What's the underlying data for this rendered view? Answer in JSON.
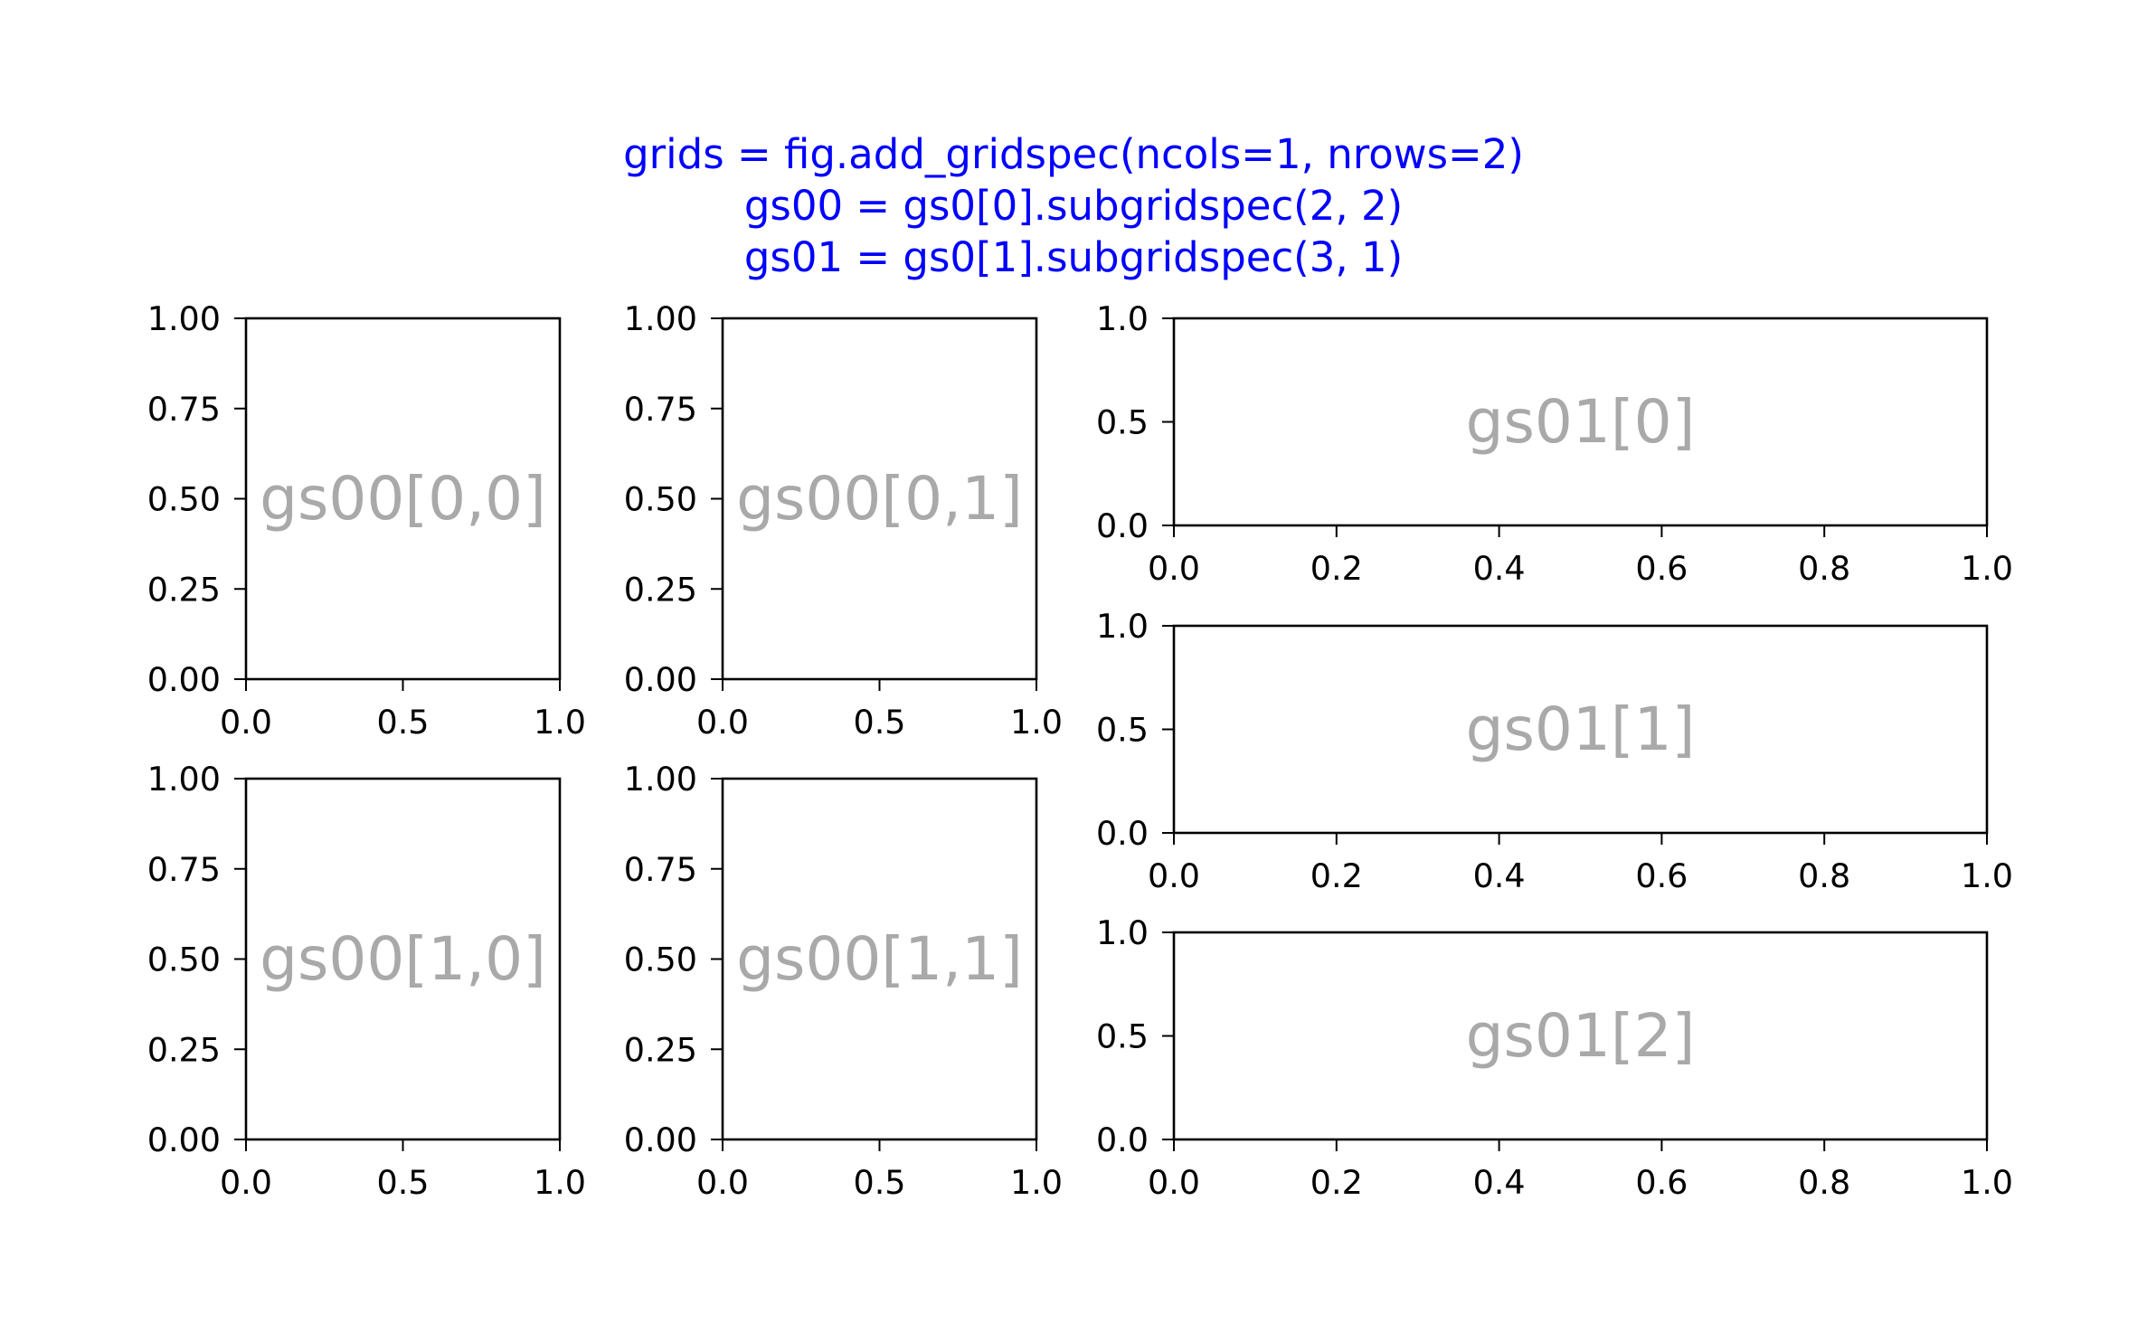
{
  "title_color": "#0000ff",
  "label_color": "#a9a9a9",
  "chart_data": {
    "type": "empty-axes-grid",
    "title_lines": [
      "grids = fig.add_gridspec(ncols=1, nrows=2)",
      "gs00 = gs0[0].subgridspec(2, 2)",
      "gs01 = gs0[1].subgridspec(3, 1)"
    ],
    "axes": [
      {
        "label": "gs00[0,0]",
        "xlim": [
          0,
          1
        ],
        "ylim": [
          0,
          1
        ],
        "xticks": [
          "0.0",
          "0.5",
          "1.0"
        ],
        "yticks": [
          "0.00",
          "0.25",
          "0.50",
          "0.75",
          "1.00"
        ]
      },
      {
        "label": "gs00[0,1]",
        "xlim": [
          0,
          1
        ],
        "ylim": [
          0,
          1
        ],
        "xticks": [
          "0.0",
          "0.5",
          "1.0"
        ],
        "yticks": [
          "0.00",
          "0.25",
          "0.50",
          "0.75",
          "1.00"
        ]
      },
      {
        "label": "gs00[1,0]",
        "xlim": [
          0,
          1
        ],
        "ylim": [
          0,
          1
        ],
        "xticks": [
          "0.0",
          "0.5",
          "1.0"
        ],
        "yticks": [
          "0.00",
          "0.25",
          "0.50",
          "0.75",
          "1.00"
        ]
      },
      {
        "label": "gs00[1,1]",
        "xlim": [
          0,
          1
        ],
        "ylim": [
          0,
          1
        ],
        "xticks": [
          "0.0",
          "0.5",
          "1.0"
        ],
        "yticks": [
          "0.00",
          "0.25",
          "0.50",
          "0.75",
          "1.00"
        ]
      },
      {
        "label": "gs01[0]",
        "xlim": [
          0,
          1
        ],
        "ylim": [
          0,
          1
        ],
        "xticks": [
          "0.0",
          "0.2",
          "0.4",
          "0.6",
          "0.8",
          "1.0"
        ],
        "yticks": [
          "0.0",
          "0.5",
          "1.0"
        ]
      },
      {
        "label": "gs01[1]",
        "xlim": [
          0,
          1
        ],
        "ylim": [
          0,
          1
        ],
        "xticks": [
          "0.0",
          "0.2",
          "0.4",
          "0.6",
          "0.8",
          "1.0"
        ],
        "yticks": [
          "0.0",
          "0.5",
          "1.0"
        ]
      },
      {
        "label": "gs01[2]",
        "xlim": [
          0,
          1
        ],
        "ylim": [
          0,
          1
        ],
        "xticks": [
          "0.0",
          "0.2",
          "0.4",
          "0.6",
          "0.8",
          "1.0"
        ],
        "yticks": [
          "0.0",
          "0.5",
          "1.0"
        ]
      }
    ]
  }
}
